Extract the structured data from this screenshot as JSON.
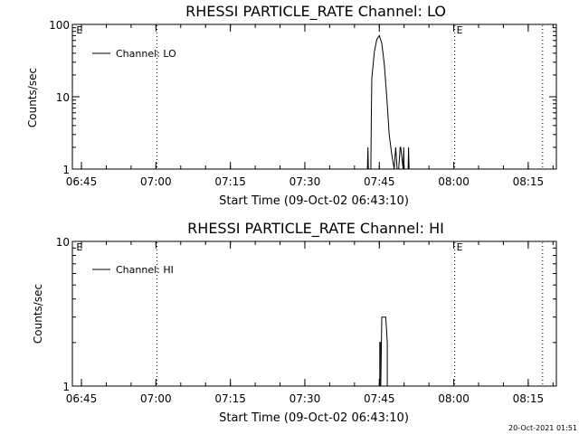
{
  "footer": {
    "timestamp": "20-Oct-2021 01:51"
  },
  "chart_data": [
    {
      "type": "line",
      "title": "RHESSI PARTICLE_RATE Channel: LO",
      "xlabel": "Start Time (09-Oct-02 06:43:10)",
      "ylabel": "Counts/sec",
      "x_unit": "minutes of day (06:43:10 = 403.17)",
      "xlim": [
        "06:43:10",
        "08:20:40"
      ],
      "xlim_min": [
        403.17,
        500.67
      ],
      "ylim": [
        1,
        100
      ],
      "yscale": "log",
      "x_ticks": [
        "06:45",
        "07:00",
        "07:15",
        "07:30",
        "07:45",
        "08:00",
        "08:15"
      ],
      "x_tick_min": [
        405,
        420,
        435,
        450,
        465,
        480,
        495
      ],
      "y_ticks": [
        "1",
        "10",
        "100"
      ],
      "y_tick_values": [
        1,
        10,
        100
      ],
      "legend": {
        "label": "Channel: LO",
        "position": "top-left"
      },
      "annotations": [
        {
          "text": "E",
          "x_min": 403.6
        },
        {
          "text": "E",
          "x_min": 480.2
        }
      ],
      "dotted_lines_min": [
        420.2,
        480.2,
        497.9
      ],
      "series": [
        {
          "x_min": [
            403.17,
            462.6,
            462.7,
            462.8,
            463.3,
            463.4,
            463.5,
            464.0,
            464.5,
            465.0,
            465.5,
            466.0,
            466.5,
            467.0,
            467.5,
            468.0,
            468.3,
            468.6,
            468.9,
            469.2,
            469.3,
            469.8,
            469.9,
            470.0,
            470.8,
            470.9,
            471.0,
            500.67
          ],
          "y": [
            1,
            1,
            2,
            1,
            1,
            6,
            18,
            42,
            62,
            70,
            55,
            28,
            10,
            3,
            1.6,
            1,
            2,
            1,
            1,
            2,
            2,
            1,
            2,
            1,
            1,
            2,
            1,
            1
          ]
        }
      ]
    },
    {
      "type": "line",
      "title": "RHESSI PARTICLE_RATE Channel: HI",
      "xlabel": "Start Time (09-Oct-02 06:43:10)",
      "ylabel": "Counts/sec",
      "xlim": [
        "06:43:10",
        "08:20:40"
      ],
      "xlim_min": [
        403.17,
        500.67
      ],
      "ylim": [
        1,
        10
      ],
      "yscale": "log",
      "x_ticks": [
        "06:45",
        "07:00",
        "07:15",
        "07:30",
        "07:45",
        "08:00",
        "08:15"
      ],
      "x_tick_min": [
        405,
        420,
        435,
        450,
        465,
        480,
        495
      ],
      "y_ticks": [
        "1",
        "10"
      ],
      "y_tick_values": [
        1,
        10
      ],
      "legend": {
        "label": "Channel: HI",
        "position": "top-left"
      },
      "annotations": [
        {
          "text": "E",
          "x_min": 403.6
        },
        {
          "text": "E",
          "x_min": 480.2
        }
      ],
      "dotted_lines_min": [
        420.2,
        480.2,
        497.9
      ],
      "series": [
        {
          "x_min": [
            465.1,
            465.1,
            465.3,
            465.3,
            465.5,
            465.6,
            466.3,
            466.6,
            466.6
          ],
          "y": [
            1,
            2,
            2,
            1,
            3,
            3,
            3,
            2,
            1
          ]
        }
      ]
    }
  ]
}
